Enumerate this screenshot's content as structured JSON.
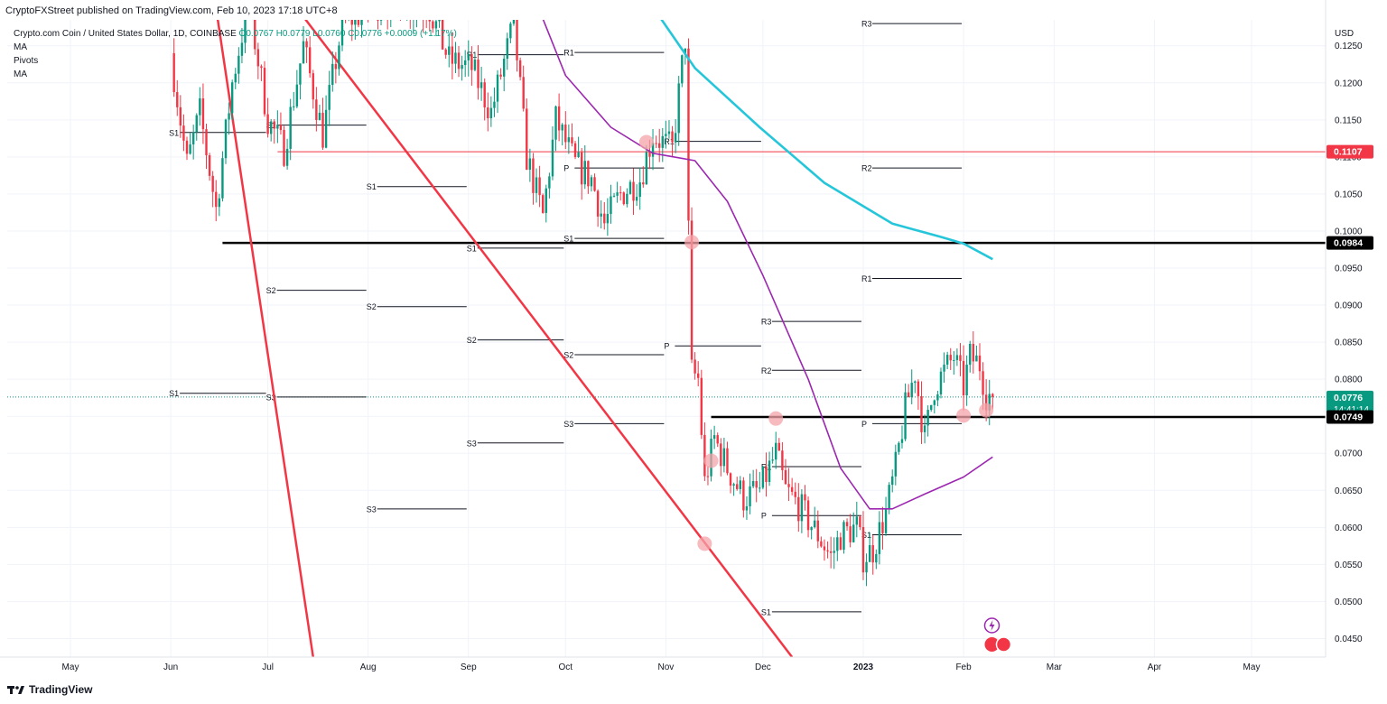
{
  "header": {
    "published": "CryptoFXStreet published on TradingView.com, Feb 10, 2023 17:18 UTC+8"
  },
  "legend": {
    "symbol": "Crypto.com Coin / United States Dollar, 1D, COINBASE",
    "ohlc": "O0.0767 H0.0779 L0.0760 C0.0776 +0.0009 (+1.17%)",
    "studies": [
      "MA",
      "Pivots",
      "MA"
    ]
  },
  "footer": {
    "brand": "TradingView",
    "logo_icon": "tradingview-logo-icon"
  },
  "colors": {
    "up": "#089981",
    "down": "#f23645",
    "ma_slow": "#26c6da",
    "ma_fast": "#9c27b0",
    "trendline": "#f23645",
    "level": "#000000",
    "grid": "#f0f3fa",
    "price_dotted": "#089981"
  },
  "chart_data": {
    "type": "candlestick",
    "currency": "USD",
    "y_axis_ticks": [
      "0.1250",
      "0.1200",
      "0.1150",
      "0.1100",
      "0.1050",
      "0.1000",
      "0.0950",
      "0.0900",
      "0.0850",
      "0.0800",
      "0.0750",
      "0.0700",
      "0.0650",
      "0.0600",
      "0.0550",
      "0.0500",
      "0.0450"
    ],
    "ylim": [
      0.0425,
      0.1285
    ],
    "x_axis_labels": [
      "May",
      "Jun",
      "Jul",
      "Aug",
      "Sep",
      "Oct",
      "Nov",
      "Dec",
      "2023",
      "Feb",
      "Mar",
      "Apr",
      "May"
    ],
    "price_badges": [
      {
        "value": "0.1107",
        "color": "#f23645"
      },
      {
        "value": "0.0984",
        "color": "#000000"
      },
      {
        "value": "0.0776",
        "sub": "14:41:14",
        "color": "#089981"
      },
      {
        "value": "0.0749",
        "color": "#000000"
      }
    ],
    "horizontal_levels": [
      {
        "value": 0.0984,
        "from": "2022-06-17",
        "to": "end",
        "color": "#000000"
      },
      {
        "value": 0.0749,
        "from": "2022-11-15",
        "to": "end",
        "color": "#000000"
      },
      {
        "value": 0.1107,
        "from": "2022-07-04",
        "to": "end",
        "color": "#f23645"
      }
    ],
    "trendlines": [
      {
        "from": [
          "2022-06-14",
          0.133
        ],
        "to": [
          "2022-07-15",
          0.0425
        ]
      },
      {
        "from": [
          "2022-07-04",
          0.1335
        ],
        "to": [
          "2022-12-10",
          0.0425
        ]
      }
    ],
    "pivots": [
      {
        "label": "S1",
        "value": 0.1133,
        "from": "2022-06-01",
        "to": "2022-07-01"
      },
      {
        "label": "S1",
        "value": 0.1143,
        "from": "2022-07-01",
        "to": "2022-08-01"
      },
      {
        "label": "S2",
        "value": 0.092,
        "from": "2022-07-01",
        "to": "2022-08-01"
      },
      {
        "label": "S3",
        "value": 0.0776,
        "from": "2022-07-01",
        "to": "2022-08-01"
      },
      {
        "label": "S1",
        "value": 0.0781,
        "from": "2022-06-01",
        "to": "2022-07-01"
      },
      {
        "label": "S1",
        "value": 0.106,
        "from": "2022-08-01",
        "to": "2022-09-01"
      },
      {
        "label": "S2",
        "value": 0.0898,
        "from": "2022-08-01",
        "to": "2022-09-01"
      },
      {
        "label": "S3",
        "value": 0.0625,
        "from": "2022-08-01",
        "to": "2022-09-01"
      },
      {
        "label": "R1",
        "value": 0.1238,
        "from": "2022-09-01",
        "to": "2022-10-01"
      },
      {
        "label": "S1",
        "value": 0.0977,
        "from": "2022-09-01",
        "to": "2022-10-01"
      },
      {
        "label": "S2",
        "value": 0.0853,
        "from": "2022-09-01",
        "to": "2022-10-01"
      },
      {
        "label": "S3",
        "value": 0.0714,
        "from": "2022-09-01",
        "to": "2022-10-01"
      },
      {
        "label": "R1",
        "value": 0.1241,
        "from": "2022-10-01",
        "to": "2022-11-01"
      },
      {
        "label": "P",
        "value": 0.1085,
        "from": "2022-10-01",
        "to": "2022-11-01"
      },
      {
        "label": "S1",
        "value": 0.099,
        "from": "2022-10-01",
        "to": "2022-11-01"
      },
      {
        "label": "S2",
        "value": 0.0833,
        "from": "2022-10-01",
        "to": "2022-11-01"
      },
      {
        "label": "S3",
        "value": 0.074,
        "from": "2022-10-01",
        "to": "2022-11-01"
      },
      {
        "label": "R1",
        "value": 0.1121,
        "from": "2022-11-01",
        "to": "2022-12-01"
      },
      {
        "label": "P",
        "value": 0.0845,
        "from": "2022-11-01",
        "to": "2022-12-01"
      },
      {
        "label": "R3",
        "value": 0.0878,
        "from": "2022-12-01",
        "to": "2023-01-01"
      },
      {
        "label": "R2",
        "value": 0.0812,
        "from": "2022-12-01",
        "to": "2023-01-01"
      },
      {
        "label": "R1",
        "value": 0.0682,
        "from": "2022-12-01",
        "to": "2023-01-01"
      },
      {
        "label": "P",
        "value": 0.0616,
        "from": "2022-12-01",
        "to": "2023-01-01"
      },
      {
        "label": "S1",
        "value": 0.0486,
        "from": "2022-12-01",
        "to": "2023-01-01"
      },
      {
        "label": "R3",
        "value": 0.128,
        "from": "2023-01-01",
        "to": "2023-02-01"
      },
      {
        "label": "R2",
        "value": 0.1085,
        "from": "2023-01-01",
        "to": "2023-02-01"
      },
      {
        "label": "R1",
        "value": 0.0936,
        "from": "2023-01-01",
        "to": "2023-02-01"
      },
      {
        "label": "P",
        "value": 0.074,
        "from": "2023-01-01",
        "to": "2023-02-01"
      },
      {
        "label": "S1",
        "value": 0.059,
        "from": "2023-01-01",
        "to": "2023-02-01"
      }
    ],
    "highlights": [
      {
        "date": "2022-10-26",
        "value": 0.112
      },
      {
        "date": "2022-11-09",
        "value": 0.0985
      },
      {
        "date": "2022-11-13",
        "value": 0.0578
      },
      {
        "date": "2022-11-15",
        "value": 0.069
      },
      {
        "date": "2022-12-05",
        "value": 0.0747
      },
      {
        "date": "2023-02-01",
        "value": 0.0751
      },
      {
        "date": "2023-02-08",
        "value": 0.0758
      }
    ],
    "ma_slow": [
      [
        "2022-10-26",
        0.1315
      ],
      [
        "2022-11-10",
        0.122
      ],
      [
        "2022-11-30",
        0.114
      ],
      [
        "2022-12-20",
        0.1065
      ],
      [
        "2023-01-10",
        0.101
      ],
      [
        "2023-01-25",
        0.0992
      ],
      [
        "2023-02-01",
        0.0983
      ],
      [
        "2023-02-10",
        0.0962
      ]
    ],
    "ma_fast": [
      [
        "2022-09-20",
        0.133
      ],
      [
        "2022-10-01",
        0.121
      ],
      [
        "2022-10-15",
        0.114
      ],
      [
        "2022-10-28",
        0.1105
      ],
      [
        "2022-11-10",
        0.1095
      ],
      [
        "2022-11-20",
        0.104
      ],
      [
        "2022-12-01",
        0.094
      ],
      [
        "2022-12-15",
        0.08
      ],
      [
        "2022-12-25",
        0.068
      ],
      [
        "2023-01-03",
        0.0625
      ],
      [
        "2023-01-10",
        0.0625
      ],
      [
        "2023-01-20",
        0.0645
      ],
      [
        "2023-02-01",
        0.0668
      ],
      [
        "2023-02-10",
        0.0695
      ]
    ],
    "segments": [
      [
        "2022-06-01",
        0.124
      ],
      [
        "2022-06-06",
        0.109
      ],
      [
        "2022-06-10",
        0.116
      ],
      [
        "2022-06-15",
        0.103
      ],
      [
        "2022-06-20",
        0.12
      ],
      [
        "2022-06-25",
        0.131
      ],
      [
        "2022-07-01",
        0.115
      ],
      [
        "2022-07-06",
        0.111
      ],
      [
        "2022-07-12",
        0.125
      ],
      [
        "2022-07-18",
        0.113
      ],
      [
        "2022-07-24",
        0.128
      ],
      [
        "2022-08-06",
        0.131
      ],
      [
        "2022-08-20",
        0.13
      ],
      [
        "2022-08-26",
        0.123
      ],
      [
        "2022-09-02",
        0.122
      ],
      [
        "2022-09-08",
        0.116
      ],
      [
        "2022-09-15",
        0.128
      ],
      [
        "2022-09-19",
        0.11
      ],
      [
        "2022-09-24",
        0.102
      ],
      [
        "2022-09-28",
        0.115
      ],
      [
        "2022-10-04",
        0.109
      ],
      [
        "2022-10-09",
        0.107
      ],
      [
        "2022-10-13",
        0.101
      ],
      [
        "2022-10-18",
        0.105
      ],
      [
        "2022-10-24",
        0.107
      ],
      [
        "2022-10-28",
        0.113
      ],
      [
        "2022-11-03",
        0.111
      ],
      [
        "2022-11-07",
        0.126
      ],
      [
        "2022-11-08",
        0.1
      ],
      [
        "2022-11-09",
        0.081
      ],
      [
        "2022-11-11",
        0.08
      ],
      [
        "2022-11-13",
        0.066
      ],
      [
        "2022-11-16",
        0.072
      ],
      [
        "2022-11-20",
        0.068
      ],
      [
        "2022-11-25",
        0.064
      ],
      [
        "2022-11-30",
        0.065
      ],
      [
        "2022-12-05",
        0.07
      ],
      [
        "2022-12-08",
        0.065
      ],
      [
        "2022-12-12",
        0.063
      ],
      [
        "2022-12-18",
        0.059
      ],
      [
        "2022-12-22",
        0.056
      ],
      [
        "2022-12-25",
        0.059
      ],
      [
        "2022-12-30",
        0.06
      ],
      [
        "2023-01-01",
        0.056
      ],
      [
        "2023-01-04",
        0.057
      ],
      [
        "2023-01-08",
        0.062
      ],
      [
        "2023-01-11",
        0.068
      ],
      [
        "2023-01-14",
        0.076
      ],
      [
        "2023-01-17",
        0.081
      ],
      [
        "2023-01-20",
        0.072
      ],
      [
        "2023-01-23",
        0.079
      ],
      [
        "2023-01-26",
        0.081
      ],
      [
        "2023-01-29",
        0.083
      ],
      [
        "2023-02-01",
        0.079
      ],
      [
        "2023-02-03",
        0.083
      ],
      [
        "2023-02-06",
        0.082
      ],
      [
        "2023-02-08",
        0.078
      ],
      [
        "2023-02-10",
        0.0776
      ]
    ]
  }
}
